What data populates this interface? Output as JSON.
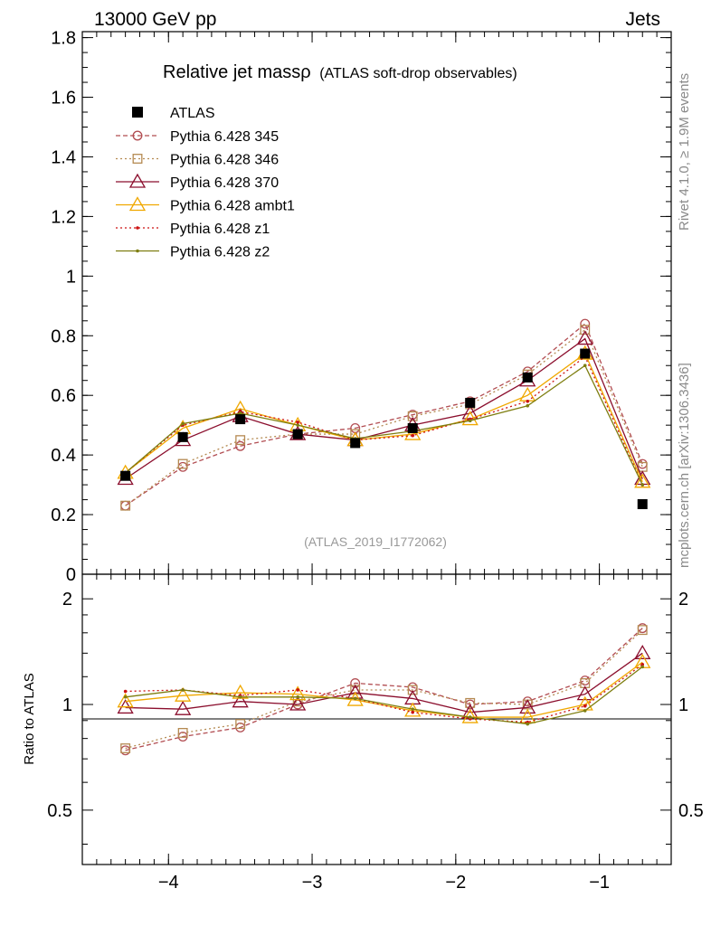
{
  "header": {
    "left": "13000 GeV pp",
    "right": "Jets"
  },
  "side": {
    "rivet": "Rivet 4.1.0, ≥ 1.9M events",
    "mcplots": "mcplots.cern.ch [arXiv:1306.3436]"
  },
  "chart_data": {
    "type": "line",
    "title": "Relative jet massρ",
    "subtitle": "(ATLAS soft-drop observables)",
    "watermark": "(ATLAS_2019_I1772062)",
    "ratio_ylabel": "Ratio to ATLAS",
    "xlim": [
      -4.6,
      -0.5
    ],
    "ylim": [
      0,
      1.82
    ],
    "ratio_ylim": [
      0.35,
      2.35
    ],
    "x_ticks": [
      -4,
      -3,
      -2,
      -1
    ],
    "x_tick_labels": [
      "−4",
      "−3",
      "−2",
      "−1"
    ],
    "y_ticks": [
      0,
      0.2,
      0.4,
      0.6,
      0.8,
      1,
      1.2,
      1.4,
      1.6,
      1.8
    ],
    "y_tick_labels": [
      "0",
      "0.2",
      "0.4",
      "0.6",
      "0.8",
      "1",
      "1.2",
      "1.4",
      "1.6",
      "1.8"
    ],
    "ratio_ticks": [
      0.5,
      1,
      2
    ],
    "ratio_tick_labels": [
      "0.5",
      "1",
      "2"
    ],
    "x": [
      -4.3,
      -3.9,
      -3.5,
      -3.1,
      -2.7,
      -2.3,
      -1.9,
      -1.5,
      -1.1,
      -0.7
    ],
    "data": {
      "name": "ATLAS",
      "values": [
        0.33,
        0.46,
        0.52,
        0.47,
        0.44,
        0.49,
        0.575,
        0.66,
        0.74,
        0.235
      ],
      "color": "#000000"
    },
    "series": [
      {
        "name": "Pythia 6.428 345",
        "color": "#b24d52",
        "dash": "5,3",
        "marker": "circle",
        "values": [
          0.23,
          0.36,
          0.43,
          0.47,
          0.49,
          0.535,
          0.58,
          0.68,
          0.84,
          0.37
        ],
        "ratio": [
          0.74,
          0.81,
          0.86,
          1.0,
          1.15,
          1.12,
          1.0,
          1.02,
          1.17,
          1.65
        ]
      },
      {
        "name": "Pythia 6.428 346",
        "color": "#b58a52",
        "dash": "2,3",
        "marker": "square",
        "values": [
          0.23,
          0.37,
          0.45,
          0.47,
          0.47,
          0.53,
          0.57,
          0.67,
          0.82,
          0.36
        ],
        "ratio": [
          0.75,
          0.83,
          0.88,
          1.02,
          1.1,
          1.1,
          1.01,
          1.0,
          1.15,
          1.63
        ]
      },
      {
        "name": "Pythia 6.428 370",
        "color": "#8b0e2d",
        "dash": "",
        "marker": "triangle",
        "values": [
          0.32,
          0.45,
          0.53,
          0.47,
          0.45,
          0.5,
          0.54,
          0.65,
          0.79,
          0.32
        ],
        "ratio": [
          0.98,
          0.97,
          1.02,
          1.0,
          1.08,
          1.04,
          0.95,
          0.98,
          1.07,
          1.4
        ]
      },
      {
        "name": "Pythia 6.428 ambt1",
        "color": "#f0a800",
        "dash": "",
        "marker": "triangle",
        "values": [
          0.34,
          0.49,
          0.555,
          0.5,
          0.45,
          0.47,
          0.52,
          0.6,
          0.74,
          0.31
        ],
        "ratio": [
          1.02,
          1.06,
          1.08,
          1.07,
          1.03,
          0.96,
          0.92,
          0.92,
          1.0,
          1.32
        ]
      },
      {
        "name": "Pythia 6.428 z1",
        "color": "#cc1111",
        "dash": "2,3",
        "marker": "dot",
        "values": [
          0.34,
          0.5,
          0.545,
          0.51,
          0.45,
          0.465,
          0.52,
          0.58,
          0.73,
          0.3
        ],
        "ratio": [
          1.09,
          1.1,
          1.06,
          1.1,
          1.04,
          0.95,
          0.91,
          0.89,
          0.99,
          1.3
        ]
      },
      {
        "name": "Pythia 6.428 z2",
        "color": "#7e7e10",
        "dash": "",
        "marker": "dot",
        "values": [
          0.34,
          0.505,
          0.54,
          0.5,
          0.455,
          0.48,
          0.515,
          0.565,
          0.7,
          0.3
        ],
        "ratio": [
          1.05,
          1.1,
          1.05,
          1.05,
          1.04,
          0.97,
          0.92,
          0.88,
          0.96,
          1.28
        ]
      }
    ]
  }
}
